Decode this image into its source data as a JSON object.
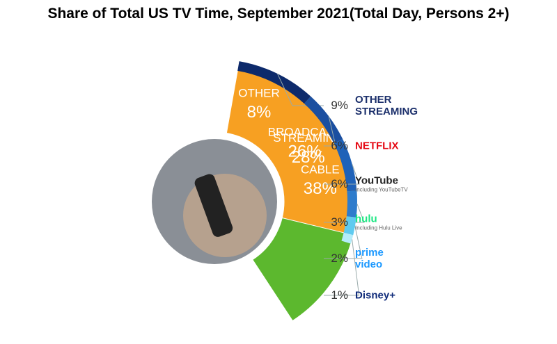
{
  "chart_data": {
    "type": "pie",
    "title": "Share of Total US TV Time, September 2021(Total Day, Persons 2+)",
    "categories": [
      "STREAMING",
      "OTHER",
      "CABLE",
      "BROADCAST"
    ],
    "values": [
      28,
      8,
      38,
      26
    ],
    "value_labels": [
      "28%",
      "8%",
      "38%",
      "26%"
    ],
    "colors": [
      "#29a3e6",
      "#a21fb5",
      "#5cb82e",
      "#f7a022"
    ],
    "breakdown": {
      "categories": [
        "OTHER STREAMING",
        "NETFLIX",
        "YouTube",
        "hulu",
        "prime video",
        "Disney+"
      ],
      "values": [
        9,
        6,
        6,
        3,
        2,
        1
      ],
      "value_labels": [
        "9%",
        "6%",
        "6%",
        "3%",
        "2%",
        "1%"
      ],
      "notes": [
        null,
        null,
        "Including YouTubeTV",
        "Including Hulu Live",
        null,
        null
      ],
      "colors": [
        "#0d2a6b",
        "#1b4fa0",
        "#1f62b8",
        "#2e7ccc",
        "#5fcbf0",
        "#b4ecfa"
      ],
      "label_colors": [
        "#1b2f6b",
        "#e50914",
        "#222222",
        "#1ce783",
        "#1a98ff",
        "#0f2b7a"
      ]
    }
  }
}
